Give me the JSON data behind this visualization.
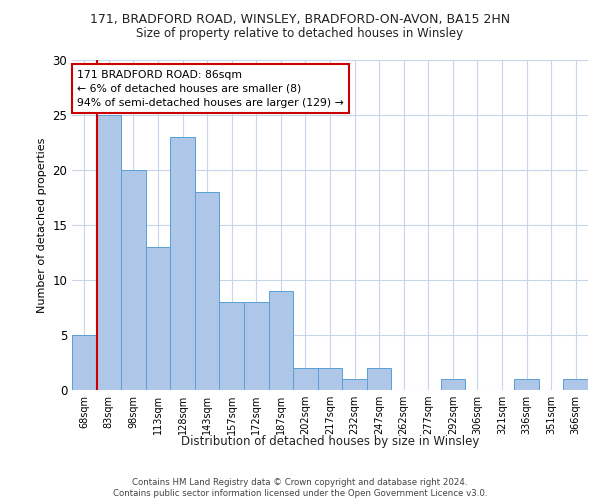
{
  "title": "171, BRADFORD ROAD, WINSLEY, BRADFORD-ON-AVON, BA15 2HN",
  "subtitle": "Size of property relative to detached houses in Winsley",
  "xlabel": "Distribution of detached houses by size in Winsley",
  "ylabel": "Number of detached properties",
  "categories": [
    "68sqm",
    "83sqm",
    "98sqm",
    "113sqm",
    "128sqm",
    "143sqm",
    "157sqm",
    "172sqm",
    "187sqm",
    "202sqm",
    "217sqm",
    "232sqm",
    "247sqm",
    "262sqm",
    "277sqm",
    "292sqm",
    "306sqm",
    "321sqm",
    "336sqm",
    "351sqm",
    "366sqm"
  ],
  "values": [
    5,
    25,
    20,
    13,
    23,
    18,
    8,
    8,
    9,
    2,
    2,
    1,
    2,
    0,
    0,
    1,
    0,
    0,
    1,
    0,
    1
  ],
  "bar_color": "#aec6e8",
  "bar_edge_color": "#5a9fd4",
  "subject_line_color": "#cc0000",
  "ylim": [
    0,
    30
  ],
  "yticks": [
    0,
    5,
    10,
    15,
    20,
    25,
    30
  ],
  "annotation_text": "171 BRADFORD ROAD: 86sqm\n← 6% of detached houses are smaller (8)\n94% of semi-detached houses are larger (129) →",
  "annotation_box_color": "#cc0000",
  "footer_line1": "Contains HM Land Registry data © Crown copyright and database right 2024.",
  "footer_line2": "Contains public sector information licensed under the Open Government Licence v3.0.",
  "background_color": "#ffffff",
  "grid_color": "#c8d4e8"
}
